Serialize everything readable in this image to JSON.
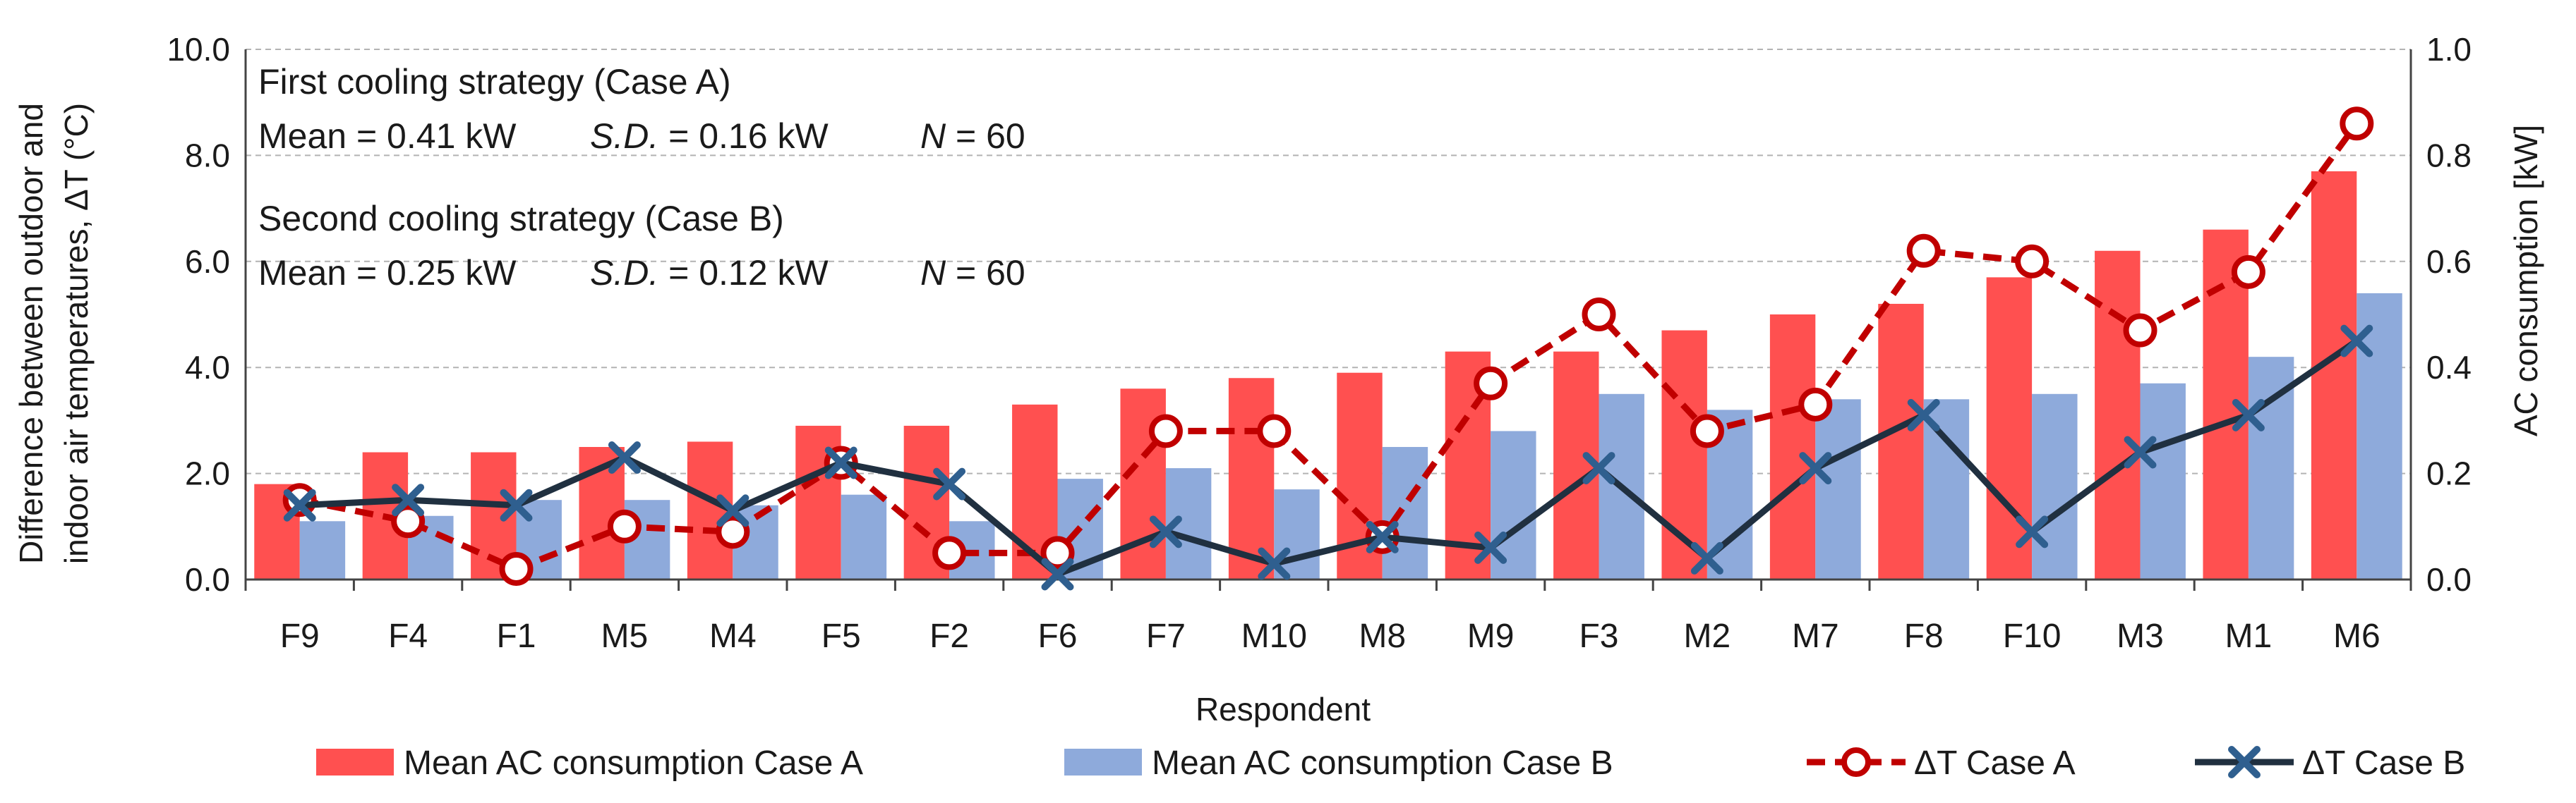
{
  "chart_data": {
    "type": "bar+line",
    "xlabel": "Respondent",
    "ylabel_left_line1": "Difference between outdoor and",
    "ylabel_left_line2": "indoor air temperatures, ΔT (°C)",
    "ylabel_right": "AC consumption [kW]",
    "ylim_left": [
      0,
      10
    ],
    "ylim_right": [
      0,
      1
    ],
    "y_ticks_left": [
      "0.0",
      "2.0",
      "4.0",
      "6.0",
      "8.0",
      "10.0"
    ],
    "y_ticks_right": [
      "0.0",
      "0.2",
      "0.4",
      "0.6",
      "0.8",
      "1.0"
    ],
    "categories": [
      "F9",
      "F4",
      "F1",
      "M5",
      "M4",
      "F5",
      "F2",
      "F6",
      "F7",
      "M10",
      "M8",
      "M9",
      "F3",
      "M2",
      "M7",
      "F8",
      "F10",
      "M3",
      "M1",
      "M6"
    ],
    "bar_series": [
      {
        "name": "Mean AC consumption Case A",
        "color": "#ff5050",
        "axis": "right",
        "values": [
          0.18,
          0.24,
          0.24,
          0.25,
          0.26,
          0.29,
          0.29,
          0.33,
          0.36,
          0.38,
          0.39,
          0.43,
          0.43,
          0.47,
          0.5,
          0.52,
          0.57,
          0.62,
          0.66,
          0.77
        ]
      },
      {
        "name": "Mean AC consumption Case B",
        "color": "#8eaadb",
        "axis": "right",
        "values": [
          0.11,
          0.12,
          0.15,
          0.15,
          0.14,
          0.16,
          0.11,
          0.19,
          0.21,
          0.17,
          0.25,
          0.28,
          0.35,
          0.32,
          0.34,
          0.34,
          0.35,
          0.37,
          0.42,
          0.54
        ]
      }
    ],
    "line_series": [
      {
        "name": "ΔT Case A",
        "color": "#c00000",
        "marker": "circle",
        "dashed": true,
        "axis": "left",
        "values": [
          1.5,
          1.1,
          0.2,
          1.0,
          0.9,
          2.2,
          0.5,
          0.5,
          2.8,
          2.8,
          0.8,
          3.7,
          5.0,
          2.8,
          3.3,
          6.2,
          6.0,
          4.7,
          5.8,
          8.6
        ]
      },
      {
        "name": "ΔT Case B",
        "color": "#203040",
        "marker": "x",
        "dashed": false,
        "axis": "left",
        "values": [
          1.4,
          1.5,
          1.4,
          2.3,
          1.3,
          2.2,
          1.8,
          0.1,
          0.9,
          0.3,
          0.8,
          0.6,
          2.1,
          0.4,
          2.1,
          3.1,
          0.9,
          2.4,
          3.1,
          4.5
        ]
      }
    ],
    "annotations": {
      "case_a_title": "First cooling strategy (Case A)",
      "case_a_mean": "Mean = 0.41 kW",
      "case_a_sd_label": "S.D.",
      "case_a_sd_value": " = 0.16 kW",
      "case_a_n_label": "N",
      "case_a_n_value": " = 60",
      "case_b_title": "Second cooling strategy (Case B)",
      "case_b_mean": "Mean = 0.25 kW",
      "case_b_sd_label": "S.D.",
      "case_b_sd_value": " = 0.12 kW",
      "case_b_n_label": "N",
      "case_b_n_value": " = 60"
    },
    "legend": [
      "Mean AC consumption Case A",
      "Mean AC consumption Case B",
      "ΔT Case A",
      "ΔT Case B"
    ]
  }
}
